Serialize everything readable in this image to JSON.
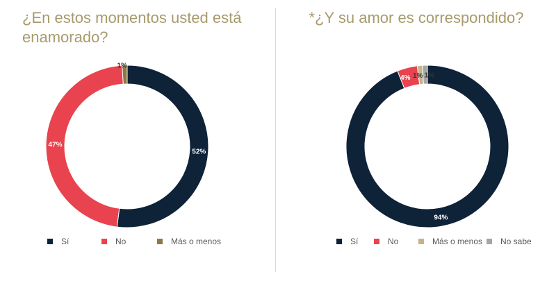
{
  "chart_data": [
    {
      "type": "pie",
      "donut": true,
      "title": "¿En estos momentos usted está enamorado?",
      "categories": [
        "Sí",
        "No",
        "Más o menos"
      ],
      "values": [
        52,
        47,
        1
      ],
      "value_labels": [
        "52%",
        "47%",
        "1%"
      ],
      "colors": [
        "#0e2238",
        "#e8434e",
        "#8a7a45"
      ],
      "legend_position": "bottom"
    },
    {
      "type": "pie",
      "donut": true,
      "title": "*¿Y su amor es correspondido?",
      "categories": [
        "Sí",
        "No",
        "Más o menos",
        "No sabe"
      ],
      "values": [
        94,
        4,
        1,
        1
      ],
      "value_labels": [
        "94%",
        "4%",
        "1%",
        "1%"
      ],
      "colors": [
        "#0e2238",
        "#e8434e",
        "#c5b48a",
        "#a6a6a6"
      ],
      "legend_position": "bottom"
    }
  ]
}
